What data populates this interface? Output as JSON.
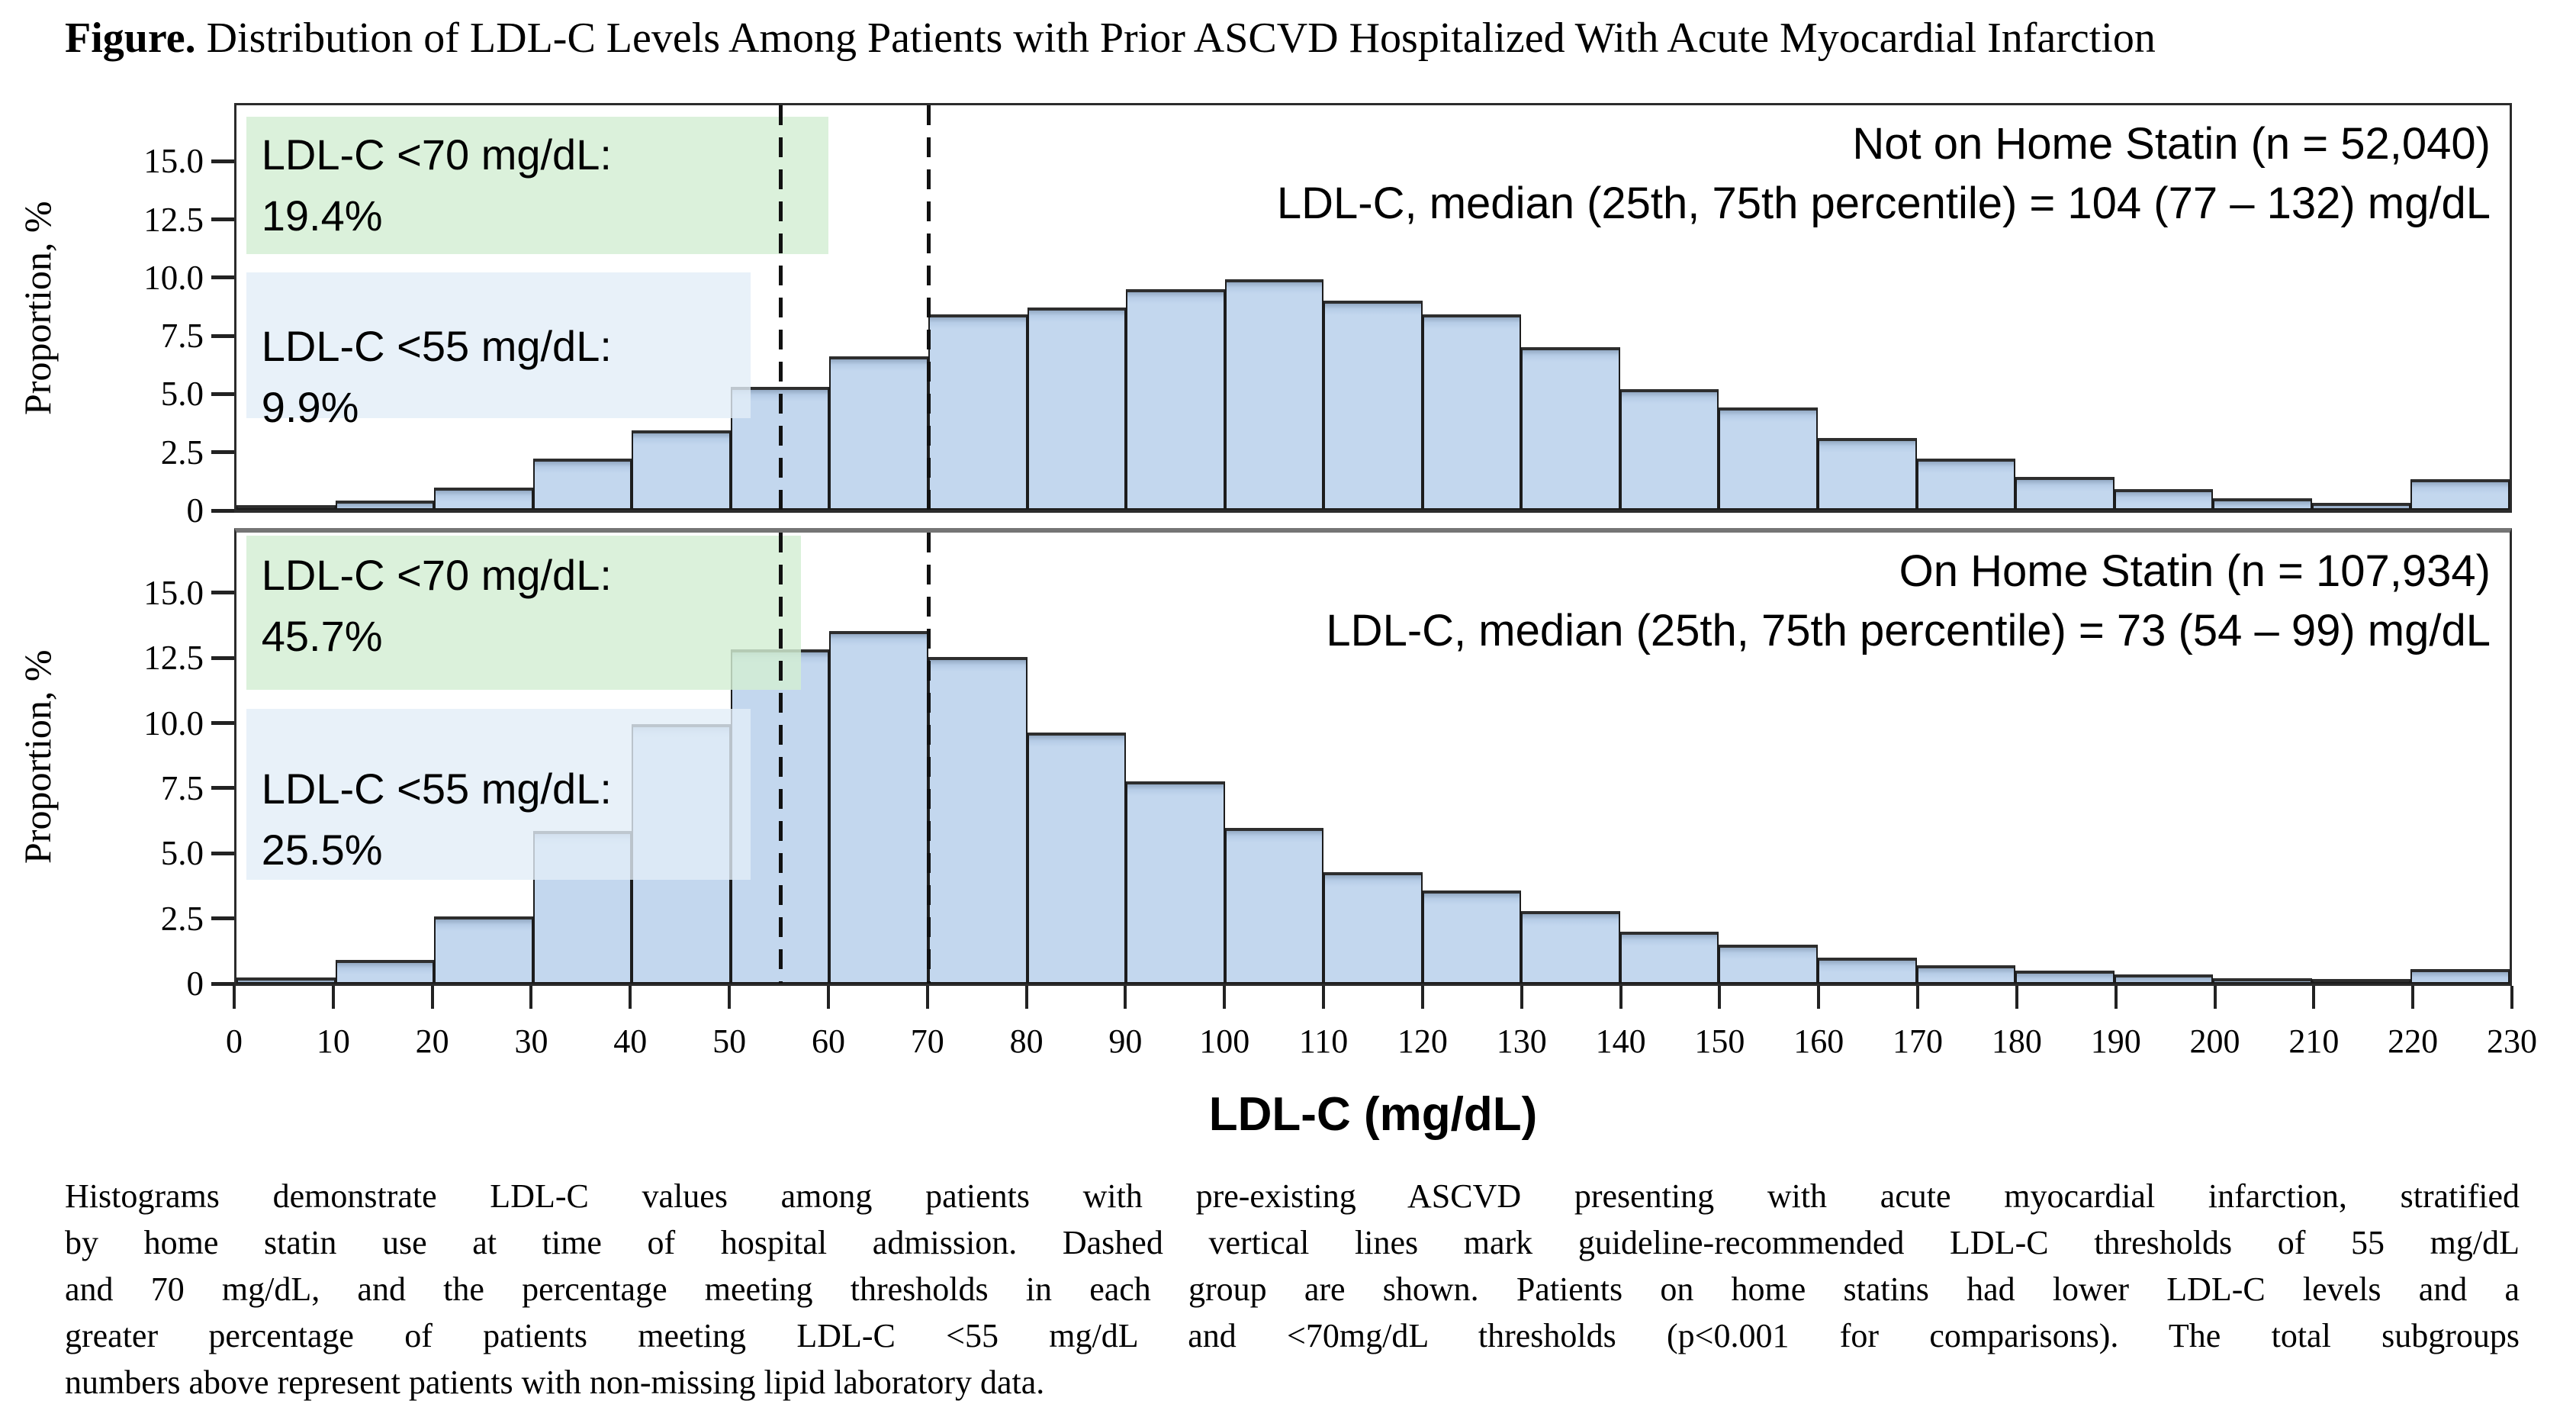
{
  "title": {
    "prefix": "Figure.",
    "text": " Distribution of LDL-C Levels Among Patients with Prior ASCVD Hospitalized With Acute Myocardial Infarction"
  },
  "y_axis": {
    "label": "Proportion, %",
    "ticks": [
      "15.0",
      "12.5",
      "10.0",
      "7.5",
      "5.0",
      "2.5",
      "0"
    ],
    "tick_values": [
      15.0,
      12.5,
      10.0,
      7.5,
      5.0,
      2.5,
      0
    ],
    "display_max": 17.4
  },
  "x_axis": {
    "label": "LDL-C (mg/dL)",
    "tick_values": [
      0,
      10,
      20,
      30,
      40,
      50,
      60,
      70,
      80,
      90,
      100,
      110,
      120,
      130,
      140,
      150,
      160,
      170,
      180,
      190,
      200,
      210,
      220,
      230
    ],
    "range": [
      0,
      230
    ]
  },
  "thresholds": {
    "values_mg_dl": [
      55,
      70
    ]
  },
  "colors": {
    "bar_fill": "#c3d7ee",
    "bar_edge": "#1c1c1c",
    "highlight_green": "#d7efd7",
    "highlight_blue": "#e4eef8",
    "dash_line": "#111111"
  },
  "chart_data": [
    {
      "type": "bar",
      "panel": "top",
      "title": "Not on Home Statin (n = 52,040)",
      "subtitle": "LDL-C, median (25th, 75th percentile) = 104 (77 – 132) mg/dL",
      "xlabel": "LDL-C (mg/dL)",
      "ylabel": "Proportion, %",
      "xlim": [
        0,
        230
      ],
      "ylim": [
        0,
        17.4
      ],
      "bin_width": 10,
      "bin_starts": [
        0,
        10,
        20,
        30,
        40,
        50,
        60,
        70,
        80,
        90,
        100,
        110,
        120,
        130,
        140,
        150,
        160,
        170,
        180,
        190,
        200,
        210,
        220
      ],
      "values": [
        0.15,
        0.4,
        0.95,
        2.2,
        3.4,
        5.3,
        6.6,
        8.4,
        8.7,
        9.5,
        9.9,
        9.0,
        8.4,
        7.0,
        5.2,
        4.4,
        3.1,
        2.2,
        1.4,
        0.9,
        0.5,
        0.3,
        1.3
      ],
      "annotations": [
        {
          "label": "LDL-C <70 mg/dL:",
          "value": "19.4%",
          "highlight": "green"
        },
        {
          "label": "LDL-C <55 mg/dL:",
          "value": "9.9%",
          "highlight": "blue"
        }
      ]
    },
    {
      "type": "bar",
      "panel": "bottom",
      "title": "On Home Statin (n = 107,934)",
      "subtitle": "LDL-C, median (25th, 75th percentile) = 73 (54 – 99) mg/dL",
      "xlabel": "LDL-C (mg/dL)",
      "ylabel": "Proportion, %",
      "xlim": [
        0,
        230
      ],
      "ylim": [
        0,
        17.4
      ],
      "bin_width": 10,
      "bin_starts": [
        0,
        10,
        20,
        30,
        40,
        50,
        60,
        70,
        80,
        90,
        100,
        110,
        120,
        130,
        140,
        150,
        160,
        170,
        180,
        190,
        200,
        210,
        220
      ],
      "values": [
        0.25,
        0.9,
        2.6,
        5.9,
        10.0,
        12.9,
        13.6,
        12.6,
        9.7,
        7.8,
        6.0,
        4.3,
        3.6,
        2.8,
        2.0,
        1.5,
        1.0,
        0.7,
        0.5,
        0.35,
        0.2,
        0.15,
        0.55
      ],
      "annotations": [
        {
          "label": "LDL-C <70 mg/dL:",
          "value": "45.7%",
          "highlight": "green"
        },
        {
          "label": "LDL-C <55 mg/dL:",
          "value": "25.5%",
          "highlight": "blue"
        }
      ]
    }
  ],
  "caption": {
    "lines": [
      "Histograms demonstrate LDL-C values among patients with pre-existing ASCVD presenting with acute myocardial infarction, stratified",
      "by home statin use at time of hospital admission. Dashed vertical lines mark guideline-recommended LDL-C thresholds of 55 mg/dL",
      "and 70 mg/dL, and the percentage meeting thresholds in each group are shown. Patients on home statins had lower LDL-C levels and a",
      "greater percentage of patients meeting LDL-C <55 mg/dL and <70mg/dL thresholds (p<0.001 for comparisons). The total subgroups",
      "numbers above represent patients with non-missing lipid laboratory data."
    ]
  }
}
